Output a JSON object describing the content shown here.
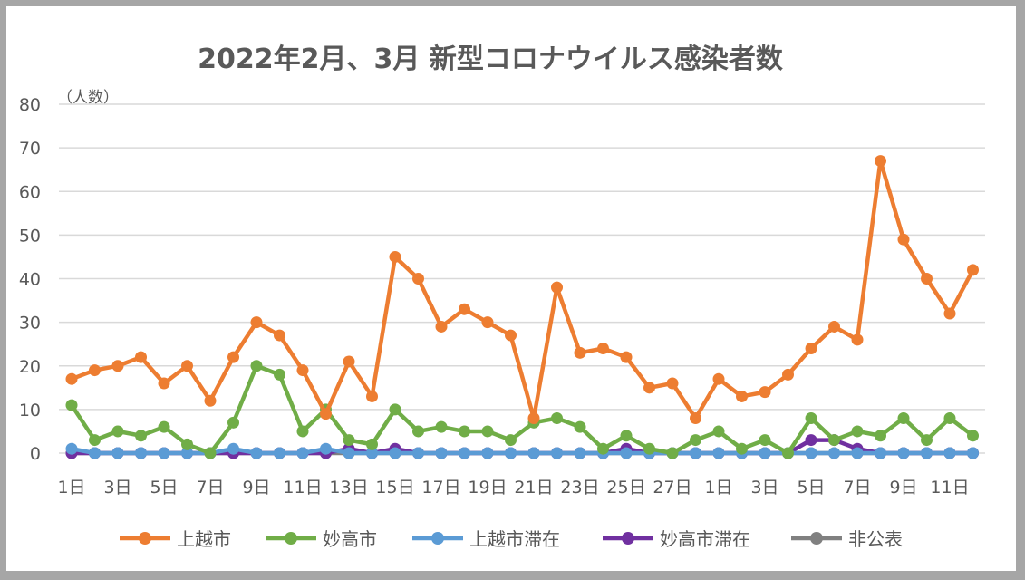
{
  "chart_data": {
    "type": "line",
    "title": "2022年2月、3月 新型コロナウイルス感染者数",
    "unit_label": "（人数）",
    "ylim": [
      0,
      80
    ],
    "yticks": [
      0,
      10,
      20,
      30,
      40,
      50,
      60,
      70,
      80
    ],
    "grid": true,
    "legend_position": "bottom",
    "x": [
      "1日",
      "2日",
      "3日",
      "4日",
      "5日",
      "6日",
      "7日",
      "8日",
      "9日",
      "10日",
      "11日",
      "12日",
      "13日",
      "14日",
      "15日",
      "16日",
      "17日",
      "18日",
      "19日",
      "20日",
      "21日",
      "22日",
      "23日",
      "24日",
      "25日",
      "26日",
      "27日",
      "28日",
      "1日",
      "2日",
      "3日",
      "4日",
      "5日",
      "6日",
      "7日",
      "8日",
      "9日",
      "10日",
      "11日",
      "12日"
    ],
    "x_tick_labels": [
      "1日",
      "",
      "3日",
      "",
      "5日",
      "",
      "7日",
      "",
      "9日",
      "",
      "11日",
      "",
      "13日",
      "",
      "15日",
      "",
      "17日",
      "",
      "19日",
      "",
      "21日",
      "",
      "23日",
      "",
      "25日",
      "",
      "27日",
      "",
      "1日",
      "",
      "3日",
      "",
      "5日",
      "",
      "7日",
      "",
      "9日",
      "",
      "11日",
      ""
    ],
    "series": [
      {
        "name": "上越市",
        "color": "#ed7d31",
        "values": [
          17,
          19,
          20,
          22,
          16,
          20,
          12,
          22,
          30,
          27,
          19,
          9,
          21,
          13,
          45,
          40,
          29,
          33,
          30,
          27,
          8,
          38,
          23,
          24,
          22,
          15,
          16,
          8,
          17,
          13,
          14,
          18,
          24,
          29,
          26,
          67,
          49,
          40,
          32,
          42
        ]
      },
      {
        "name": "妙高市",
        "color": "#70ad47",
        "values": [
          11,
          3,
          5,
          4,
          6,
          2,
          0,
          7,
          20,
          18,
          5,
          10,
          3,
          2,
          10,
          5,
          6,
          5,
          5,
          3,
          7,
          8,
          6,
          1,
          4,
          1,
          0,
          3,
          5,
          1,
          3,
          0,
          8,
          3,
          5,
          4,
          8,
          3,
          8,
          4
        ]
      },
      {
        "name": "上越市滞在",
        "color": "#5b9bd5",
        "values": [
          1,
          0,
          0,
          0,
          0,
          0,
          0,
          1,
          0,
          0,
          0,
          1,
          0,
          0,
          0,
          0,
          0,
          0,
          0,
          0,
          0,
          0,
          0,
          0,
          0,
          0,
          0,
          0,
          0,
          0,
          0,
          0,
          0,
          0,
          0,
          0,
          0,
          0,
          0,
          0
        ]
      },
      {
        "name": "妙高市滞在",
        "color": "#7030a0",
        "values": [
          0,
          0,
          0,
          0,
          0,
          0,
          0,
          0,
          0,
          0,
          0,
          0,
          1,
          0,
          1,
          0,
          0,
          0,
          0,
          0,
          0,
          0,
          0,
          0,
          1,
          0,
          0,
          0,
          0,
          0,
          0,
          0,
          3,
          3,
          1,
          0,
          0,
          0,
          0,
          0
        ]
      },
      {
        "name": "非公表",
        "color": "#808080",
        "values": [
          0,
          0,
          0,
          0,
          0,
          0,
          0,
          0,
          0,
          0,
          0,
          0,
          0,
          0,
          0,
          0,
          0,
          0,
          0,
          0,
          0,
          0,
          0,
          0,
          0,
          0,
          0,
          0,
          0,
          0,
          0,
          0,
          0,
          0,
          0,
          0,
          0,
          0,
          0,
          0
        ]
      }
    ]
  }
}
